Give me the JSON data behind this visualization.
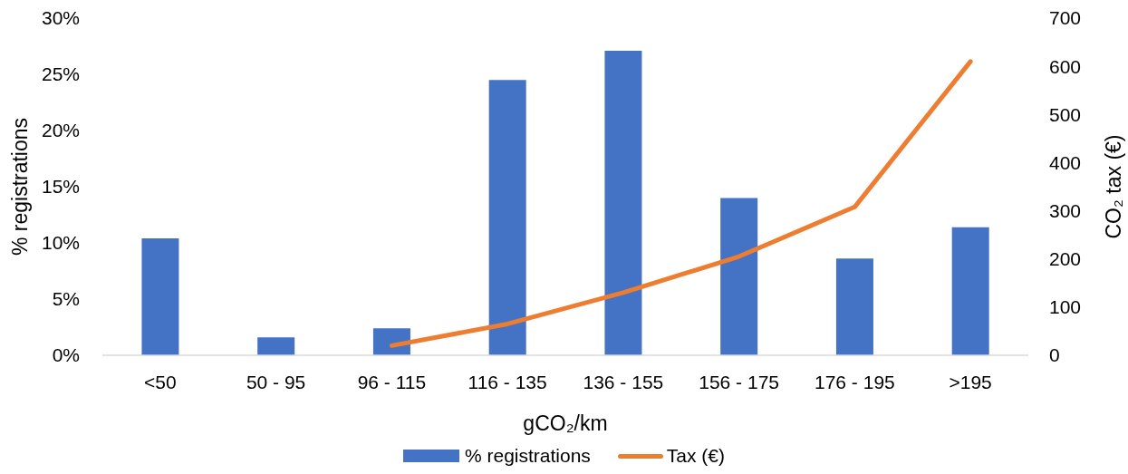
{
  "chart_data": {
    "type": "bar",
    "xlabel": "gCO₂/km",
    "ylabel": "% registrations",
    "y2label": "CO₂ tax (€)",
    "categories": [
      "<50",
      "50 - 95",
      "96 - 115",
      "116 - 135",
      "136 - 155",
      "156 - 175",
      "176 - 195",
      ">195"
    ],
    "series": [
      {
        "name": "% registrations",
        "color": "#4472c4",
        "values": [
          10.4,
          1.6,
          2.4,
          24.5,
          27.1,
          14.0,
          8.6,
          11.4
        ]
      },
      {
        "name": "Tax (€)",
        "type": "line",
        "axis": "y2",
        "color": "#ed7d31",
        "values": [
          null,
          null,
          20,
          65,
          130,
          205,
          308,
          610
        ]
      }
    ],
    "ylim": [
      0,
      30
    ],
    "yticks": [
      {
        "value": 0,
        "label": "0%"
      },
      {
        "value": 5,
        "label": "5%"
      },
      {
        "value": 10,
        "label": "10%"
      },
      {
        "value": 15,
        "label": "15%"
      },
      {
        "value": 20,
        "label": "20%"
      },
      {
        "value": 25,
        "label": "25%"
      },
      {
        "value": 30,
        "label": "30%"
      }
    ],
    "y2lim": [
      0,
      700
    ],
    "y2ticks": [
      0,
      100,
      200,
      300,
      400,
      500,
      600,
      700
    ],
    "grid": false,
    "legend": "bottom",
    "marker": "none",
    "line_style": "solid"
  }
}
